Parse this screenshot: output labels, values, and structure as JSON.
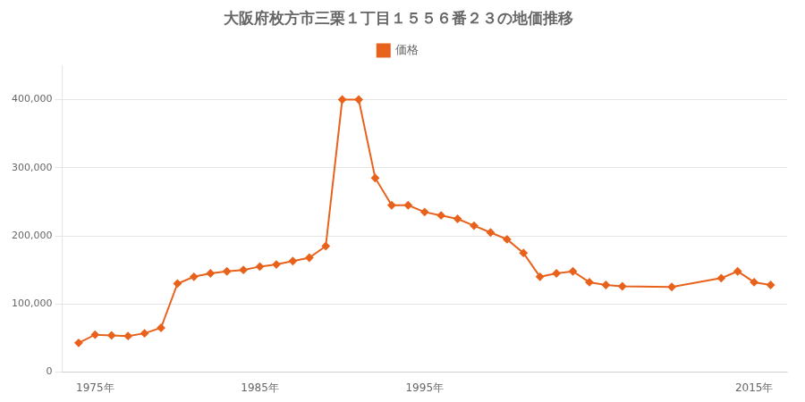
{
  "chart_data": {
    "type": "line",
    "title": "大阪府枚方市三栗１丁目１５５６番２３の地価推移",
    "x": [
      1974,
      1975,
      1976,
      1977,
      1978,
      1979,
      1980,
      1981,
      1982,
      1983,
      1984,
      1985,
      1986,
      1987,
      1988,
      1989,
      1990,
      1991,
      1992,
      1993,
      1994,
      1995,
      1996,
      1997,
      1998,
      1999,
      2000,
      2001,
      2002,
      2003,
      2004,
      2005,
      2006,
      2007,
      2010,
      2013,
      2014,
      2015,
      2016
    ],
    "series": [
      {
        "name": "価格",
        "color": "#e8621c",
        "values": [
          43000,
          55000,
          54000,
          53000,
          57000,
          65000,
          130000,
          140000,
          145000,
          148000,
          150000,
          155000,
          158000,
          163000,
          168000,
          185000,
          400000,
          400000,
          285000,
          245000,
          245000,
          235000,
          230000,
          225000,
          215000,
          205000,
          195000,
          175000,
          140000,
          145000,
          148000,
          132000,
          128000,
          126000,
          125000,
          138000,
          148000,
          132000,
          128000
        ]
      }
    ],
    "xlim": [
      1973,
      2017
    ],
    "xticks": [
      {
        "value": 1975,
        "label": "1975年"
      },
      {
        "value": 1985,
        "label": "1985年"
      },
      {
        "value": 1995,
        "label": "1995年"
      },
      {
        "value": 2015,
        "label": "2015年"
      }
    ],
    "ylim": [
      0,
      450000
    ],
    "yticks": [
      0,
      {
        "value": 100000,
        "label": "100,000"
      },
      {
        "value": 200000,
        "label": "200,000"
      },
      {
        "value": 300000,
        "label": "300,000"
      },
      {
        "value": 400000,
        "label": "400,000"
      }
    ],
    "grid": "y",
    "marker": "diamond",
    "legend": "top"
  }
}
